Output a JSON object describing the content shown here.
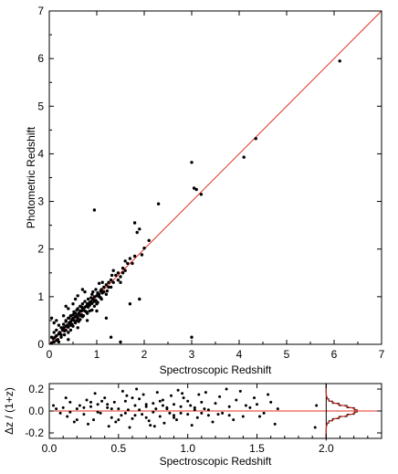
{
  "chart_data": [
    {
      "type": "scatter",
      "xlabel": "Spectroscopic Redshift",
      "ylabel": "Photometric Redshift",
      "xlim": [
        0,
        7
      ],
      "ylim": [
        0,
        7
      ],
      "xticks": [
        "0",
        "1",
        "2",
        "3",
        "4",
        "5",
        "6",
        "7"
      ],
      "yticks": [
        "0",
        "1",
        "2",
        "3",
        "4",
        "5",
        "6",
        "7"
      ],
      "grid": false,
      "reference_line": {
        "slope": 1,
        "intercept": 0,
        "color": "#e03020"
      },
      "points": [
        [
          0.05,
          0.03
        ],
        [
          0.08,
          0.12
        ],
        [
          0.1,
          0.05
        ],
        [
          0.12,
          0.15
        ],
        [
          0.15,
          0.18
        ],
        [
          0.18,
          0.1
        ],
        [
          0.2,
          0.22
        ],
        [
          0.22,
          0.25
        ],
        [
          0.25,
          0.2
        ],
        [
          0.28,
          0.3
        ],
        [
          0.3,
          0.35
        ],
        [
          0.32,
          0.28
        ],
        [
          0.35,
          0.38
        ],
        [
          0.38,
          0.4
        ],
        [
          0.4,
          0.36
        ],
        [
          0.42,
          0.45
        ],
        [
          0.45,
          0.48
        ],
        [
          0.48,
          0.42
        ],
        [
          0.5,
          0.55
        ],
        [
          0.52,
          0.5
        ],
        [
          0.55,
          0.58
        ],
        [
          0.58,
          0.6
        ],
        [
          0.6,
          0.55
        ],
        [
          0.62,
          0.65
        ],
        [
          0.65,
          0.7
        ],
        [
          0.68,
          0.62
        ],
        [
          0.7,
          0.72
        ],
        [
          0.72,
          0.75
        ],
        [
          0.75,
          0.7
        ],
        [
          0.78,
          0.8
        ],
        [
          0.8,
          0.85
        ],
        [
          0.82,
          0.78
        ],
        [
          0.85,
          0.88
        ],
        [
          0.88,
          0.9
        ],
        [
          0.9,
          0.86
        ],
        [
          0.92,
          0.95
        ],
        [
          0.95,
          1.0
        ],
        [
          0.98,
          0.92
        ],
        [
          1.0,
          1.02
        ],
        [
          1.02,
          1.08
        ],
        [
          1.05,
          1.0
        ],
        [
          1.08,
          1.12
        ],
        [
          1.1,
          1.15
        ],
        [
          1.12,
          1.08
        ],
        [
          1.15,
          1.2
        ],
        [
          1.2,
          1.25
        ],
        [
          1.25,
          1.2
        ],
        [
          1.3,
          1.35
        ],
        [
          1.35,
          1.3
        ],
        [
          1.4,
          1.45
        ],
        [
          1.45,
          1.5
        ],
        [
          1.5,
          1.42
        ],
        [
          1.55,
          1.6
        ],
        [
          1.6,
          1.55
        ],
        [
          1.65,
          1.7
        ],
        [
          0.3,
          0.42
        ],
        [
          0.45,
          0.6
        ],
        [
          0.55,
          0.45
        ],
        [
          0.65,
          0.8
        ],
        [
          0.7,
          0.58
        ],
        [
          0.75,
          0.9
        ],
        [
          0.85,
          0.7
        ],
        [
          0.9,
          1.05
        ],
        [
          1.0,
          0.85
        ],
        [
          0.4,
          0.25
        ],
        [
          0.5,
          0.62
        ],
        [
          0.6,
          0.75
        ],
        [
          0.8,
          0.65
        ],
        [
          0.35,
          0.5
        ],
        [
          0.25,
          0.35
        ],
        [
          0.15,
          0.3
        ],
        [
          0.1,
          0.45
        ],
        [
          0.2,
          0.05
        ],
        [
          0.6,
          1.02
        ],
        [
          0.55,
          0.95
        ],
        [
          0.75,
          1.1
        ],
        [
          0.3,
          0.6
        ],
        [
          0.4,
          0.75
        ],
        [
          0.95,
          0.8
        ],
        [
          1.1,
          0.95
        ],
        [
          1.2,
          1.05
        ],
        [
          1.3,
          1.2
        ],
        [
          1.5,
          1.3
        ],
        [
          1.6,
          1.75
        ],
        [
          1.7,
          1.8
        ],
        [
          1.8,
          1.85
        ],
        [
          1.45,
          1.35
        ],
        [
          0.9,
          0.72
        ],
        [
          1.05,
          1.28
        ],
        [
          0.7,
          0.85
        ],
        [
          0.65,
          0.52
        ],
        [
          0.5,
          0.38
        ],
        [
          0.45,
          0.3
        ],
        [
          0.2,
          0.4
        ],
        [
          0.1,
          0.25
        ],
        [
          0.05,
          0.15
        ],
        [
          0.32,
          0.2
        ],
        [
          0.42,
          0.55
        ],
        [
          0.52,
          0.68
        ],
        [
          0.62,
          0.48
        ],
        [
          0.72,
          0.6
        ],
        [
          0.82,
          0.95
        ],
        [
          0.92,
          1.1
        ],
        [
          1.02,
          0.88
        ],
        [
          1.12,
          1.3
        ],
        [
          1.22,
          1.12
        ],
        [
          1.32,
          1.45
        ],
        [
          0.58,
          0.72
        ],
        [
          0.68,
          0.78
        ],
        [
          0.78,
          0.68
        ],
        [
          0.88,
          0.98
        ],
        [
          0.98,
          1.15
        ],
        [
          1.08,
          0.98
        ],
        [
          0.35,
          0.3
        ],
        [
          0.25,
          0.15
        ],
        [
          0.15,
          0.08
        ],
        [
          0.4,
          0.55
        ],
        [
          0.48,
          0.52
        ],
        [
          0.58,
          0.5
        ],
        [
          0.68,
          0.7
        ],
        [
          0.35,
          0.48
        ],
        [
          0.45,
          0.4
        ],
        [
          0.55,
          0.65
        ],
        [
          0.65,
          0.6
        ],
        [
          0.75,
          0.78
        ],
        [
          0.85,
          0.82
        ],
        [
          0.95,
          0.9
        ],
        [
          1.05,
          1.05
        ],
        [
          1.15,
          1.1
        ],
        [
          1.25,
          1.3
        ],
        [
          0.05,
          0.55
        ],
        [
          0.15,
          0.5
        ],
        [
          0.35,
          0.8
        ],
        [
          0.5,
          0.85
        ],
        [
          0.7,
          1.15
        ],
        [
          0.4,
          0.1
        ],
        [
          0.6,
          0.35
        ],
        [
          0.8,
          0.5
        ],
        [
          1.0,
          0.7
        ],
        [
          1.3,
          0.15
        ],
        [
          1.5,
          0.05
        ],
        [
          1.2,
          0.55
        ],
        [
          1.35,
          1.55
        ],
        [
          1.55,
          1.5
        ],
        [
          1.75,
          1.7
        ],
        [
          0.95,
          2.82
        ],
        [
          1.8,
          2.55
        ],
        [
          1.85,
          2.35
        ],
        [
          1.9,
          2.42
        ],
        [
          1.95,
          1.88
        ],
        [
          2.0,
          2.02
        ],
        [
          2.1,
          2.18
        ],
        [
          2.3,
          2.95
        ],
        [
          1.7,
          0.85
        ],
        [
          1.9,
          0.95
        ],
        [
          3.0,
          3.82
        ],
        [
          3.05,
          3.28
        ],
        [
          3.1,
          3.25
        ],
        [
          3.2,
          3.15
        ],
        [
          3.0,
          0.15
        ],
        [
          4.1,
          3.93
        ],
        [
          4.35,
          4.32
        ],
        [
          6.12,
          5.95
        ]
      ]
    },
    {
      "type": "scatter",
      "xlabel": "Spectroscopic Redshift",
      "ylabel": "Δz / (1+z)",
      "xlim": [
        0,
        2.4
      ],
      "ylim": [
        -0.25,
        0.25
      ],
      "xticks": [
        "0.0",
        "0.5",
        "1.0",
        "1.5",
        "2.0"
      ],
      "yticks": [
        "0.2",
        "0.0",
        "-0.2"
      ],
      "reference_line": {
        "y": 0,
        "color": "#e03020"
      },
      "histogram_inset": {
        "x_position": 2.0,
        "color": "#e03020"
      },
      "points": [
        [
          0.03,
          0.05
        ],
        [
          0.08,
          -0.02
        ],
        [
          0.1,
          0.03
        ],
        [
          0.13,
          -0.05
        ],
        [
          0.15,
          0.08
        ],
        [
          0.18,
          -0.1
        ],
        [
          0.2,
          0.02
        ],
        [
          0.22,
          0.05
        ],
        [
          0.25,
          -0.03
        ],
        [
          0.27,
          0.1
        ],
        [
          0.3,
          0.04
        ],
        [
          0.32,
          -0.08
        ],
        [
          0.35,
          0.06
        ],
        [
          0.37,
          -0.02
        ],
        [
          0.4,
          0.12
        ],
        [
          0.42,
          0.03
        ],
        [
          0.45,
          -0.06
        ],
        [
          0.47,
          0.08
        ],
        [
          0.5,
          0.02
        ],
        [
          0.52,
          -0.04
        ],
        [
          0.55,
          0.09
        ],
        [
          0.57,
          0.01
        ],
        [
          0.6,
          -0.07
        ],
        [
          0.62,
          0.05
        ],
        [
          0.65,
          0.11
        ],
        [
          0.67,
          -0.03
        ],
        [
          0.7,
          0.04
        ],
        [
          0.72,
          -0.09
        ],
        [
          0.75,
          0.07
        ],
        [
          0.77,
          0.02
        ],
        [
          0.8,
          -0.05
        ],
        [
          0.82,
          0.1
        ],
        [
          0.85,
          0.03
        ],
        [
          0.87,
          -0.02
        ],
        [
          0.9,
          0.06
        ],
        [
          0.92,
          -0.08
        ],
        [
          0.95,
          0.04
        ],
        [
          0.97,
          0.12
        ],
        [
          1.0,
          -0.03
        ],
        [
          1.02,
          0.05
        ],
        [
          1.05,
          0.01
        ],
        [
          1.07,
          -0.06
        ],
        [
          1.1,
          0.08
        ],
        [
          1.12,
          0.02
        ],
        [
          1.15,
          -0.04
        ],
        [
          1.2,
          0.07
        ],
        [
          1.25,
          -0.02
        ],
        [
          1.3,
          0.04
        ],
        [
          1.35,
          0.1
        ],
        [
          1.4,
          -0.05
        ],
        [
          1.45,
          0.03
        ],
        [
          1.5,
          0.06
        ],
        [
          1.55,
          -0.02
        ],
        [
          1.6,
          0.08
        ],
        [
          1.65,
          0.02
        ],
        [
          0.12,
          0.12
        ],
        [
          0.28,
          -0.12
        ],
        [
          0.33,
          0.16
        ],
        [
          0.43,
          -0.14
        ],
        [
          0.53,
          0.18
        ],
        [
          0.58,
          -0.15
        ],
        [
          0.63,
          0.2
        ],
        [
          0.68,
          0.15
        ],
        [
          0.73,
          -0.13
        ],
        [
          0.78,
          0.17
        ],
        [
          0.83,
          -0.11
        ],
        [
          0.88,
          0.14
        ],
        [
          0.93,
          0.19
        ],
        [
          1.03,
          -0.13
        ],
        [
          1.08,
          0.15
        ],
        [
          1.13,
          0.17
        ],
        [
          1.18,
          -0.1
        ],
        [
          1.23,
          0.13
        ],
        [
          1.28,
          0.2
        ],
        [
          1.33,
          -0.08
        ],
        [
          1.38,
          0.18
        ],
        [
          1.48,
          0.12
        ],
        [
          1.58,
          0.15
        ],
        [
          1.63,
          -0.12
        ],
        [
          1.92,
          -0.15
        ],
        [
          1.93,
          0.05
        ],
        [
          0.2,
          -0.08
        ],
        [
          0.38,
          0.09
        ],
        [
          0.48,
          -0.1
        ],
        [
          0.6,
          0.12
        ],
        [
          0.7,
          -0.06
        ],
        [
          0.8,
          0.09
        ],
        [
          0.9,
          -0.04
        ],
        [
          1.0,
          0.09
        ],
        [
          1.1,
          -0.02
        ],
        [
          0.25,
          0.03
        ],
        [
          0.35,
          -0.01
        ],
        [
          0.45,
          0.02
        ],
        [
          0.55,
          -0.02
        ],
        [
          0.65,
          0.01
        ],
        [
          0.75,
          -0.01
        ],
        [
          0.85,
          0.02
        ],
        [
          0.95,
          -0.02
        ],
        [
          1.05,
          0.03
        ],
        [
          1.15,
          0.01
        ],
        [
          0.05,
          0.02
        ],
        [
          0.15,
          -0.01
        ],
        [
          0.42,
          0.06
        ],
        [
          0.62,
          -0.04
        ],
        [
          0.82,
          0.05
        ],
        [
          1.22,
          -0.03
        ],
        [
          1.42,
          0.05
        ],
        [
          0.3,
          0.08
        ],
        [
          0.5,
          -0.08
        ],
        [
          0.7,
          0.06
        ],
        [
          0.9,
          -0.06
        ],
        [
          1.3,
          -0.04
        ],
        [
          1.52,
          -0.05
        ],
        [
          0.56,
          0.14
        ],
        [
          0.76,
          -0.14
        ],
        [
          0.96,
          0.16
        ]
      ]
    }
  ]
}
